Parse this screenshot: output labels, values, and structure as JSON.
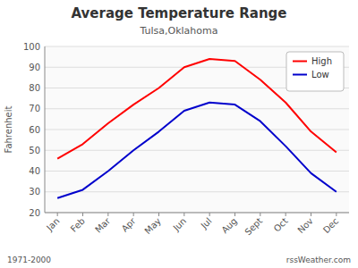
{
  "chart_data": {
    "type": "line",
    "title": "Average Temperature Range",
    "subtitle": "Tulsa,Oklahoma",
    "y_label": "Fahrenheit",
    "annotations": [
      "1971-2000",
      "rssWeather.com"
    ],
    "categories": [
      "Jan",
      "Feb",
      "Mar",
      "Apr",
      "May",
      "Jun",
      "Jul",
      "Aug",
      "Sept",
      "Oct",
      "Nov",
      "Dec"
    ],
    "series": [
      {
        "name": "High",
        "color": "#ff0000",
        "values": [
          46,
          53,
          63,
          72,
          80,
          90,
          94,
          93,
          84,
          73,
          59,
          49
        ]
      },
      {
        "name": "Low",
        "color": "#0000cc",
        "values": [
          27,
          31,
          40,
          50,
          59,
          69,
          73,
          72,
          64,
          52,
          39,
          30
        ]
      }
    ],
    "ylim": [
      20,
      100
    ],
    "yticks": [
      20,
      30,
      40,
      50,
      60,
      70,
      80,
      90,
      100
    ],
    "grid": true,
    "legend": "upper right"
  }
}
